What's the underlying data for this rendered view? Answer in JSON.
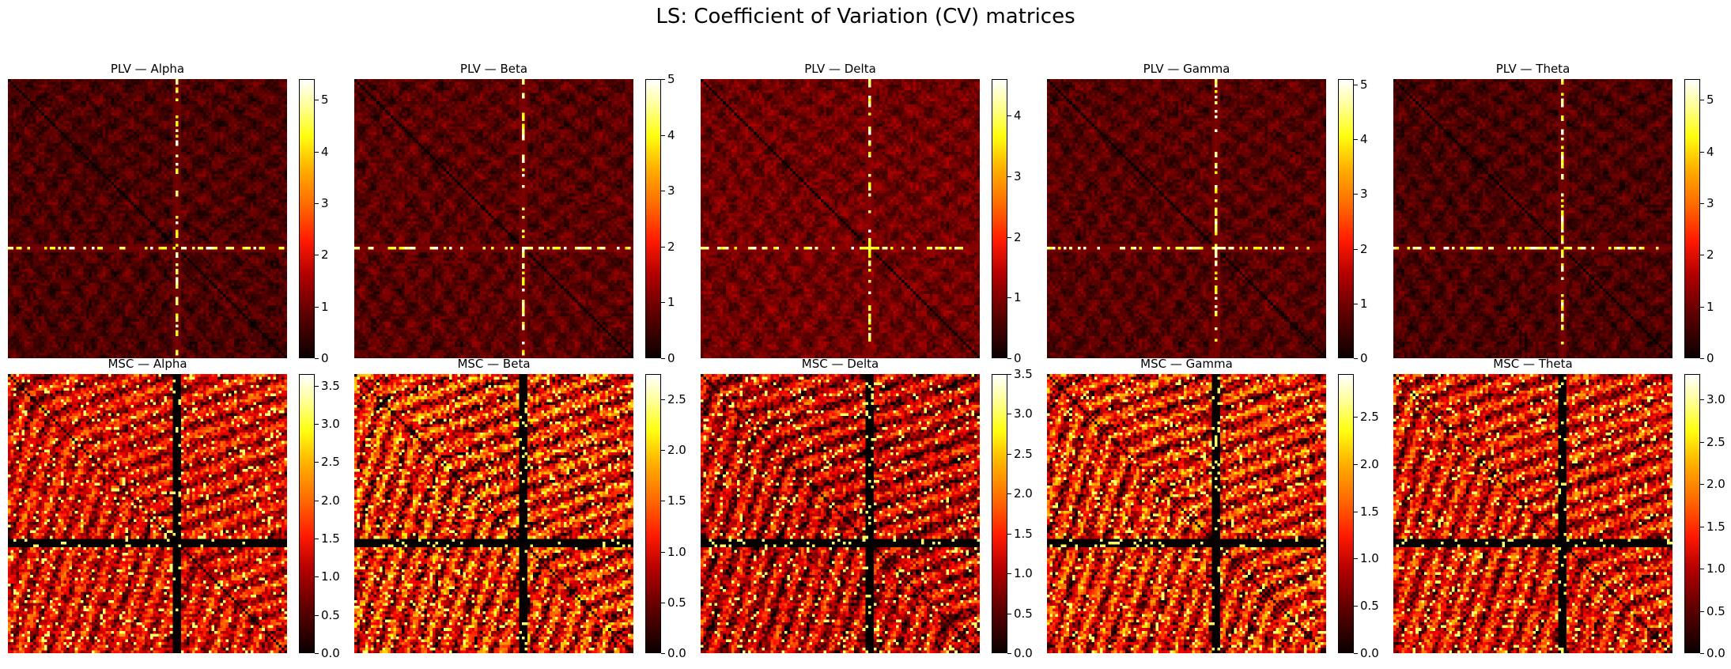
{
  "title": "LS: Coefficient of Variation (CV) matrices",
  "colormap": "hot",
  "colors": {
    "cmap_low": "#000000",
    "cmap_mid": "#ff0000",
    "cmap_high": "#ffffff"
  },
  "chart_data": [
    {
      "type": "heatmap",
      "title": "PLV — Alpha",
      "row": 0,
      "vmin": 0,
      "vmax": 5.4,
      "colorbar_ticks": [
        "0",
        "1",
        "2",
        "3",
        "4",
        "5"
      ],
      "highlight_channel_fraction": 0.6,
      "base_level": 0.3
    },
    {
      "type": "heatmap",
      "title": "PLV — Beta",
      "row": 0,
      "vmin": 0,
      "vmax": 5.0,
      "colorbar_ticks": [
        "0",
        "1",
        "2",
        "3",
        "4",
        "5"
      ],
      "highlight_channel_fraction": 0.6,
      "base_level": 0.35
    },
    {
      "type": "heatmap",
      "title": "PLV — Delta",
      "row": 0,
      "vmin": 0,
      "vmax": 4.6,
      "colorbar_ticks": [
        "0",
        "1",
        "2",
        "3",
        "4"
      ],
      "highlight_channel_fraction": 0.6,
      "base_level": 0.45
    },
    {
      "type": "heatmap",
      "title": "PLV — Gamma",
      "row": 0,
      "vmin": 0,
      "vmax": 5.1,
      "colorbar_ticks": [
        "0",
        "1",
        "2",
        "3",
        "4",
        "5"
      ],
      "highlight_channel_fraction": 0.6,
      "base_level": 0.35
    },
    {
      "type": "heatmap",
      "title": "PLV — Theta",
      "row": 0,
      "vmin": 0,
      "vmax": 5.4,
      "colorbar_ticks": [
        "0",
        "1",
        "2",
        "3",
        "4",
        "5"
      ],
      "highlight_channel_fraction": 0.6,
      "base_level": 0.3
    },
    {
      "type": "heatmap",
      "title": "MSC — Alpha",
      "row": 1,
      "vmin": 0,
      "vmax": 3.65,
      "colorbar_ticks": [
        "0.0",
        "0.5",
        "1.0",
        "1.5",
        "2.0",
        "2.5",
        "3.0",
        "3.5"
      ],
      "highlight_channel_fraction": 0.6,
      "base_level": 1.2
    },
    {
      "type": "heatmap",
      "title": "MSC — Beta",
      "row": 1,
      "vmin": 0,
      "vmax": 2.75,
      "colorbar_ticks": [
        "0.0",
        "0.5",
        "1.0",
        "1.5",
        "2.0",
        "2.5"
      ],
      "highlight_channel_fraction": 0.6,
      "base_level": 1.0
    },
    {
      "type": "heatmap",
      "title": "MSC — Delta",
      "row": 1,
      "vmin": 0,
      "vmax": 3.5,
      "colorbar_ticks": [
        "0.0",
        "0.5",
        "1.0",
        "1.5",
        "2.0",
        "2.5",
        "3.0",
        "3.5"
      ],
      "highlight_channel_fraction": 0.6,
      "base_level": 1.0
    },
    {
      "type": "heatmap",
      "title": "MSC — Gamma",
      "row": 1,
      "vmin": 0,
      "vmax": 2.95,
      "colorbar_ticks": [
        "0.0",
        "0.5",
        "1.0",
        "1.5",
        "2.0",
        "2.5"
      ],
      "highlight_channel_fraction": 0.6,
      "base_level": 1.05
    },
    {
      "type": "heatmap",
      "title": "MSC — Theta",
      "row": 1,
      "vmin": 0,
      "vmax": 3.3,
      "colorbar_ticks": [
        "0.0",
        "0.5",
        "1.0",
        "1.5",
        "2.0",
        "2.5",
        "3.0"
      ],
      "highlight_channel_fraction": 0.6,
      "base_level": 1.1
    }
  ]
}
